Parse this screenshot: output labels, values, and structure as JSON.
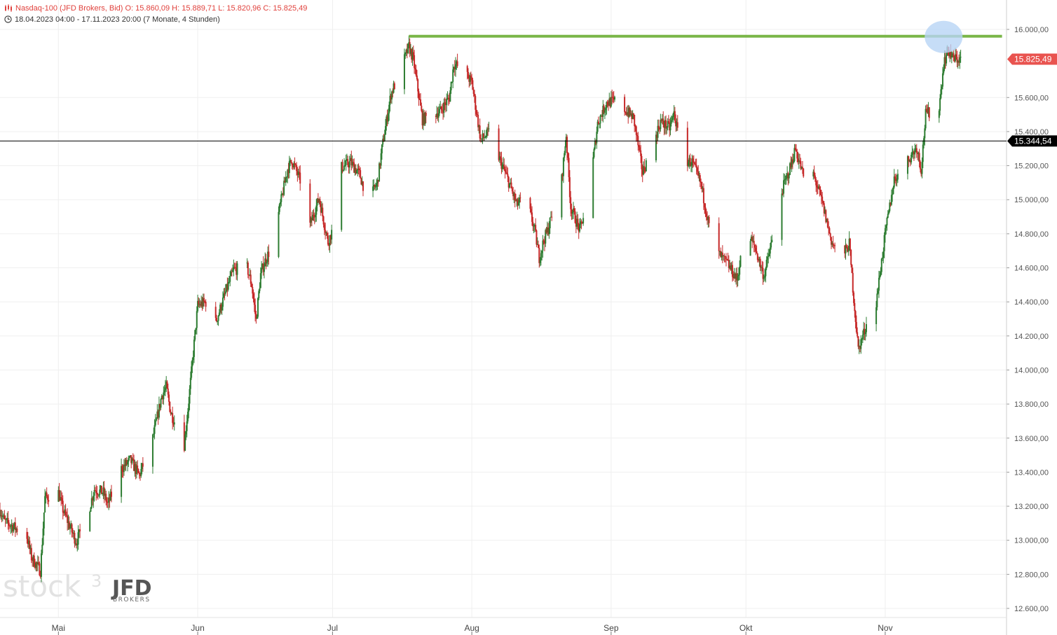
{
  "header": {
    "instrument_line": "Nasdaq-100 (JFD Brokers, Bid)  O: 15.860,09  H: 15.889,71  L: 15.820,96  C: 15.825,49",
    "range_line": "18.04.2023 04:00 - 17.11.2023 20:00   (7 Monate, 4 Stunden)",
    "clock_icon": "clock-icon",
    "bars_icon": "candlestick-bars-icon"
  },
  "watermark": {
    "text": "stock",
    "superscript": "3",
    "brand": "JFD",
    "brand_sub": "BROKERS"
  },
  "chart_data": {
    "type": "candlestick",
    "y_range": [
      12500,
      16250
    ],
    "y_ticks": [
      {
        "value": 12600,
        "label": "12.600,00"
      },
      {
        "value": 12800,
        "label": "12.800,00"
      },
      {
        "value": 13000,
        "label": "13.000,00"
      },
      {
        "value": 13200,
        "label": "13.200,00"
      },
      {
        "value": 13400,
        "label": "13.400,00"
      },
      {
        "value": 13600,
        "label": "13.600,00"
      },
      {
        "value": 13800,
        "label": "13.800,00"
      },
      {
        "value": 14000,
        "label": "14.000,00"
      },
      {
        "value": 14200,
        "label": "14.200,00"
      },
      {
        "value": 14400,
        "label": "14.400,00"
      },
      {
        "value": 14600,
        "label": "14.600,00"
      },
      {
        "value": 14800,
        "label": "14.800,00"
      },
      {
        "value": 15000,
        "label": "15.000,00"
      },
      {
        "value": 15200,
        "label": "15.200,00"
      },
      {
        "value": 15400,
        "label": "15.400,00"
      },
      {
        "value": 15600,
        "label": "15.600,00"
      },
      {
        "value": 16000,
        "label": "16.000,00"
      }
    ],
    "x_start": "2023-04-18",
    "x_end": "2023-11-17",
    "x_axis_end": "2023-11-28",
    "x_labels": [
      {
        "date": "2023-05-01",
        "label": "Mai"
      },
      {
        "date": "2023-06-01",
        "label": "Jun"
      },
      {
        "date": "2023-07-01",
        "label": "Jul"
      },
      {
        "date": "2023-08-01",
        "label": "Aug"
      },
      {
        "date": "2023-09-01",
        "label": "Sep"
      },
      {
        "date": "2023-10-01",
        "label": "Okt"
      },
      {
        "date": "2023-11-01",
        "label": "Nov"
      }
    ],
    "close_path": [
      [
        "2023-04-18",
        13180
      ],
      [
        "2023-04-19",
        13110
      ],
      [
        "2023-04-21",
        13080
      ],
      [
        "2023-04-24",
        13020
      ],
      [
        "2023-04-25",
        12900
      ],
      [
        "2023-04-26",
        12860
      ],
      [
        "2023-04-27",
        12820
      ],
      [
        "2023-04-28",
        13250
      ],
      [
        "2023-05-01",
        13280
      ],
      [
        "2023-05-02",
        13180
      ],
      [
        "2023-05-04",
        13050
      ],
      [
        "2023-05-05",
        12990
      ],
      [
        "2023-05-08",
        13200
      ],
      [
        "2023-05-09",
        13300
      ],
      [
        "2023-05-11",
        13280
      ],
      [
        "2023-05-12",
        13210
      ],
      [
        "2023-05-15",
        13420
      ],
      [
        "2023-05-17",
        13470
      ],
      [
        "2023-05-19",
        13380
      ],
      [
        "2023-05-22",
        13600
      ],
      [
        "2023-05-24",
        13850
      ],
      [
        "2023-05-25",
        13900
      ],
      [
        "2023-05-26",
        13750
      ],
      [
        "2023-05-29",
        13560
      ],
      [
        "2023-05-30",
        13820
      ],
      [
        "2023-06-01",
        14380
      ],
      [
        "2023-06-03",
        14400
      ],
      [
        "2023-06-05",
        14280
      ],
      [
        "2023-06-07",
        14440
      ],
      [
        "2023-06-09",
        14590
      ],
      [
        "2023-06-12",
        14600
      ],
      [
        "2023-06-13",
        14500
      ],
      [
        "2023-06-14",
        14290
      ],
      [
        "2023-06-15",
        14560
      ],
      [
        "2023-06-16",
        14640
      ],
      [
        "2023-06-18",
        14760
      ],
      [
        "2023-06-19",
        14920
      ],
      [
        "2023-06-21",
        15180
      ],
      [
        "2023-06-22",
        15230
      ],
      [
        "2023-06-24",
        15100
      ],
      [
        "2023-06-26",
        14850
      ],
      [
        "2023-06-28",
        15010
      ],
      [
        "2023-06-30",
        14750
      ],
      [
        "2023-07-02",
        14900
      ],
      [
        "2023-07-03",
        15190
      ],
      [
        "2023-07-05",
        15220
      ],
      [
        "2023-07-07",
        15150
      ],
      [
        "2023-07-09",
        14990
      ],
      [
        "2023-07-11",
        15100
      ],
      [
        "2023-07-12",
        15300
      ],
      [
        "2023-07-14",
        15620
      ],
      [
        "2023-07-16",
        15750
      ],
      [
        "2023-07-18",
        15900
      ],
      [
        "2023-07-19",
        15820
      ],
      [
        "2023-07-21",
        15470
      ],
      [
        "2023-07-23",
        15500
      ],
      [
        "2023-07-25",
        15520
      ],
      [
        "2023-07-27",
        15600
      ],
      [
        "2023-07-28",
        15800
      ],
      [
        "2023-07-30",
        15760
      ],
      [
        "2023-08-01",
        15690
      ],
      [
        "2023-08-03",
        15350
      ],
      [
        "2023-08-05",
        15400
      ],
      [
        "2023-08-07",
        15250
      ],
      [
        "2023-08-09",
        15120
      ],
      [
        "2023-08-11",
        14970
      ],
      [
        "2023-08-13",
        15020
      ],
      [
        "2023-08-15",
        14820
      ],
      [
        "2023-08-16",
        14660
      ],
      [
        "2023-08-17",
        14760
      ],
      [
        "2023-08-18",
        14830
      ],
      [
        "2023-08-21",
        15120
      ],
      [
        "2023-08-22",
        15380
      ],
      [
        "2023-08-23",
        14960
      ],
      [
        "2023-08-25",
        14820
      ],
      [
        "2023-08-27",
        15020
      ],
      [
        "2023-08-29",
        15450
      ],
      [
        "2023-08-31",
        15570
      ],
      [
        "2023-09-02",
        15580
      ],
      [
        "2023-09-04",
        15530
      ],
      [
        "2023-09-06",
        15480
      ],
      [
        "2023-09-08",
        15160
      ],
      [
        "2023-09-10",
        15300
      ],
      [
        "2023-09-12",
        15460
      ],
      [
        "2023-09-14",
        15420
      ],
      [
        "2023-09-15",
        15510
      ],
      [
        "2023-09-17",
        15230
      ],
      [
        "2023-09-19",
        15220
      ],
      [
        "2023-09-21",
        15090
      ],
      [
        "2023-09-23",
        14820
      ],
      [
        "2023-09-25",
        14680
      ],
      [
        "2023-09-27",
        14620
      ],
      [
        "2023-09-29",
        14530
      ],
      [
        "2023-10-01",
        14820
      ],
      [
        "2023-10-03",
        14720
      ],
      [
        "2023-10-05",
        14550
      ],
      [
        "2023-10-07",
        14780
      ],
      [
        "2023-10-09",
        15050
      ],
      [
        "2023-10-11",
        15200
      ],
      [
        "2023-10-12",
        15300
      ],
      [
        "2023-10-14",
        15120
      ],
      [
        "2023-10-16",
        15150
      ],
      [
        "2023-10-18",
        14980
      ],
      [
        "2023-10-20",
        14760
      ],
      [
        "2023-10-22",
        14640
      ],
      [
        "2023-10-24",
        14740
      ],
      [
        "2023-10-25",
        14420
      ],
      [
        "2023-10-26",
        14120
      ],
      [
        "2023-10-28",
        14280
      ],
      [
        "2023-10-30",
        14400
      ],
      [
        "2023-11-01",
        14800
      ],
      [
        "2023-11-03",
        15120
      ],
      [
        "2023-11-06",
        15230
      ],
      [
        "2023-11-08",
        15310
      ],
      [
        "2023-11-09",
        15180
      ],
      [
        "2023-11-10",
        15500
      ],
      [
        "2023-11-13",
        15540
      ],
      [
        "2023-11-14",
        15800
      ],
      [
        "2023-11-15",
        15880
      ],
      [
        "2023-11-16",
        15830
      ],
      [
        "2023-11-17",
        15825
      ]
    ],
    "annotations": {
      "resistance_line": {
        "value": 15960,
        "from": "2023-07-18",
        "to": "2023-11-27",
        "color": "#7ab648"
      },
      "horizontal_line": {
        "value": 15344.54,
        "label": "15.344,54",
        "color": "#000000"
      },
      "highlight_circle": {
        "date": "2023-11-14",
        "value": 15960,
        "color": "#b8d4f5"
      },
      "last_price": {
        "value": 15825.49,
        "label": "15.825,49",
        "color": "#e9534f"
      }
    },
    "up_color": "#2e7d32",
    "down_color": "#c62828"
  }
}
